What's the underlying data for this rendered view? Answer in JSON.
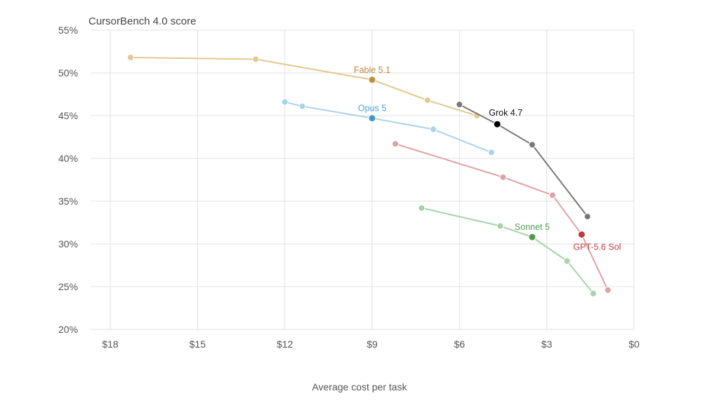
{
  "chart_data": {
    "type": "scatter",
    "title": "CursorBench 4.0 score",
    "xlabel": "Average cost per task",
    "ylabel": "",
    "xlim": [
      19,
      0
    ],
    "ylim": [
      20,
      55
    ],
    "x_reversed": true,
    "grid": true,
    "x_ticks": [
      {
        "value": 18,
        "label": "$18"
      },
      {
        "value": 15,
        "label": "$15"
      },
      {
        "value": 12,
        "label": "$12"
      },
      {
        "value": 9,
        "label": "$9"
      },
      {
        "value": 6,
        "label": "$6"
      },
      {
        "value": 3,
        "label": "$3"
      },
      {
        "value": 0,
        "label": "$0"
      }
    ],
    "y_ticks": [
      {
        "value": 55,
        "label": "55%"
      },
      {
        "value": 50,
        "label": "50%"
      },
      {
        "value": 45,
        "label": "45%"
      },
      {
        "value": 40,
        "label": "40%"
      },
      {
        "value": 35,
        "label": "35%"
      },
      {
        "value": 30,
        "label": "30%"
      },
      {
        "value": 25,
        "label": "25%"
      },
      {
        "value": 20,
        "label": "20%"
      }
    ],
    "series": [
      {
        "name": "Fable 5.1",
        "color": "#e3c88f",
        "highlight_color": "#c08f3c",
        "label_color": "#b8873a",
        "highlight_index": 2,
        "x": [
          17.3,
          13,
          9,
          7.1,
          5.4
        ],
        "y": [
          51.8,
          51.6,
          49.2,
          46.8,
          45.0
        ]
      },
      {
        "name": "Opus 5",
        "color": "#a8d3ea",
        "highlight_color": "#3f97cc",
        "label_color": "#4aa0cf",
        "highlight_index": 2,
        "x": [
          12,
          11.4,
          9,
          6.9,
          4.9
        ],
        "y": [
          46.6,
          46.1,
          44.7,
          43.4,
          40.7
        ]
      },
      {
        "name": "Grok 4.7",
        "color": "#777777",
        "highlight_color": "#000000",
        "label_color": "#111111",
        "highlight_index": 1,
        "x": [
          6,
          4.7,
          3.5,
          1.6
        ],
        "y": [
          46.3,
          44.0,
          41.6,
          33.2
        ]
      },
      {
        "name": "GPT-5.6 Sol",
        "color": "#dfa1a5",
        "highlight_color": "#c0393f",
        "label_color": "#c24046",
        "highlight_index": 3,
        "x": [
          8.2,
          4.5,
          2.8,
          1.8,
          0.9
        ],
        "y": [
          41.7,
          37.8,
          35.7,
          31.1,
          24.6
        ]
      },
      {
        "name": "Sonnet 5",
        "color": "#a6d2ad",
        "highlight_color": "#4c9a55",
        "label_color": "#4f9f58",
        "highlight_index": 2,
        "x": [
          7.3,
          4.6,
          3.5,
          2.3,
          1.4
        ],
        "y": [
          34.2,
          32.1,
          30.8,
          28.0,
          24.2
        ]
      }
    ]
  }
}
